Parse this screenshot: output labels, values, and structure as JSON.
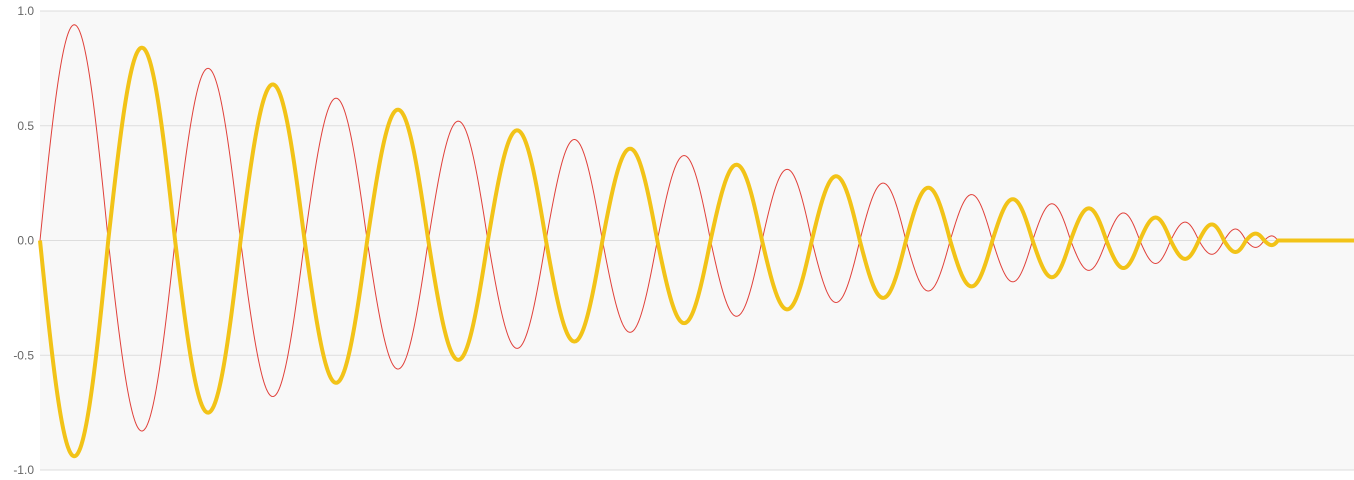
{
  "chart_data": {
    "type": "line",
    "ylim": [
      -1.0,
      1.0
    ],
    "y_ticks": [
      "1.0",
      "0.5",
      "0.0",
      "-0.5",
      "-1.0"
    ],
    "y_tick_values": [
      1.0,
      0.5,
      0.0,
      -0.5,
      -1.0
    ],
    "x_ticks": [],
    "grid": true,
    "legend": "none",
    "background_color": "#f8f8f8",
    "grid_color": "#dddddd",
    "series": [
      {
        "color": "#e0403a",
        "style": "thin",
        "peaks_approx": [
          0.94,
          -0.83,
          0.75,
          -0.68,
          0.62,
          -0.56,
          0.52,
          -0.47,
          0.44,
          -0.4,
          0.37,
          -0.33,
          0.31,
          -0.27,
          0.25,
          -0.22,
          0.2,
          -0.18,
          0.16,
          -0.13,
          0.12,
          -0.1,
          0.08,
          -0.06,
          0.05,
          -0.03,
          0.02,
          0.0
        ]
      },
      {
        "color": "#f2c318",
        "style": "thick",
        "peaks_approx": [
          -0.94,
          0.84,
          -0.75,
          0.68,
          -0.62,
          0.57,
          -0.52,
          0.48,
          -0.44,
          0.4,
          -0.36,
          0.33,
          -0.3,
          0.28,
          -0.25,
          0.23,
          -0.2,
          0.18,
          -0.16,
          0.14,
          -0.12,
          0.1,
          -0.08,
          0.07,
          -0.05,
          0.03,
          -0.02,
          0.0
        ]
      }
    ]
  }
}
